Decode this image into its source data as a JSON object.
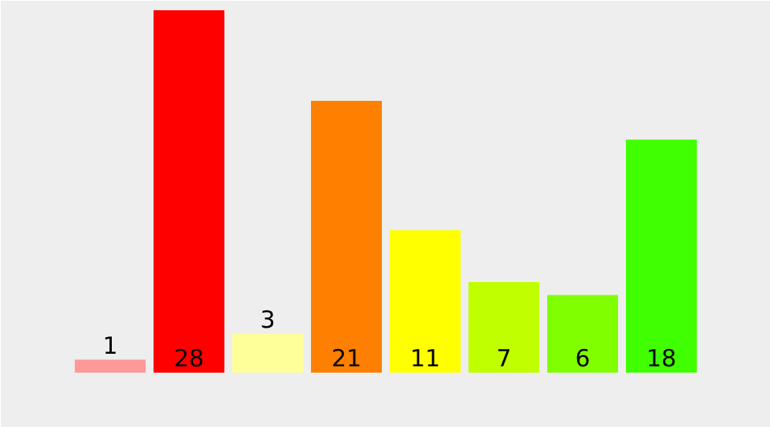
{
  "chart_data": {
    "type": "bar",
    "categories": [
      null,
      null,
      null,
      null,
      null,
      null,
      null,
      null
    ],
    "values": [
      1,
      28,
      3,
      21,
      11,
      7,
      6,
      18
    ],
    "colors": [
      "#ff9999",
      "#ff0000",
      "#ffff99",
      "#ff8000",
      "#ffff00",
      "#c0ff00",
      "#80ff00",
      "#40ff00"
    ],
    "data_labels": true
  }
}
